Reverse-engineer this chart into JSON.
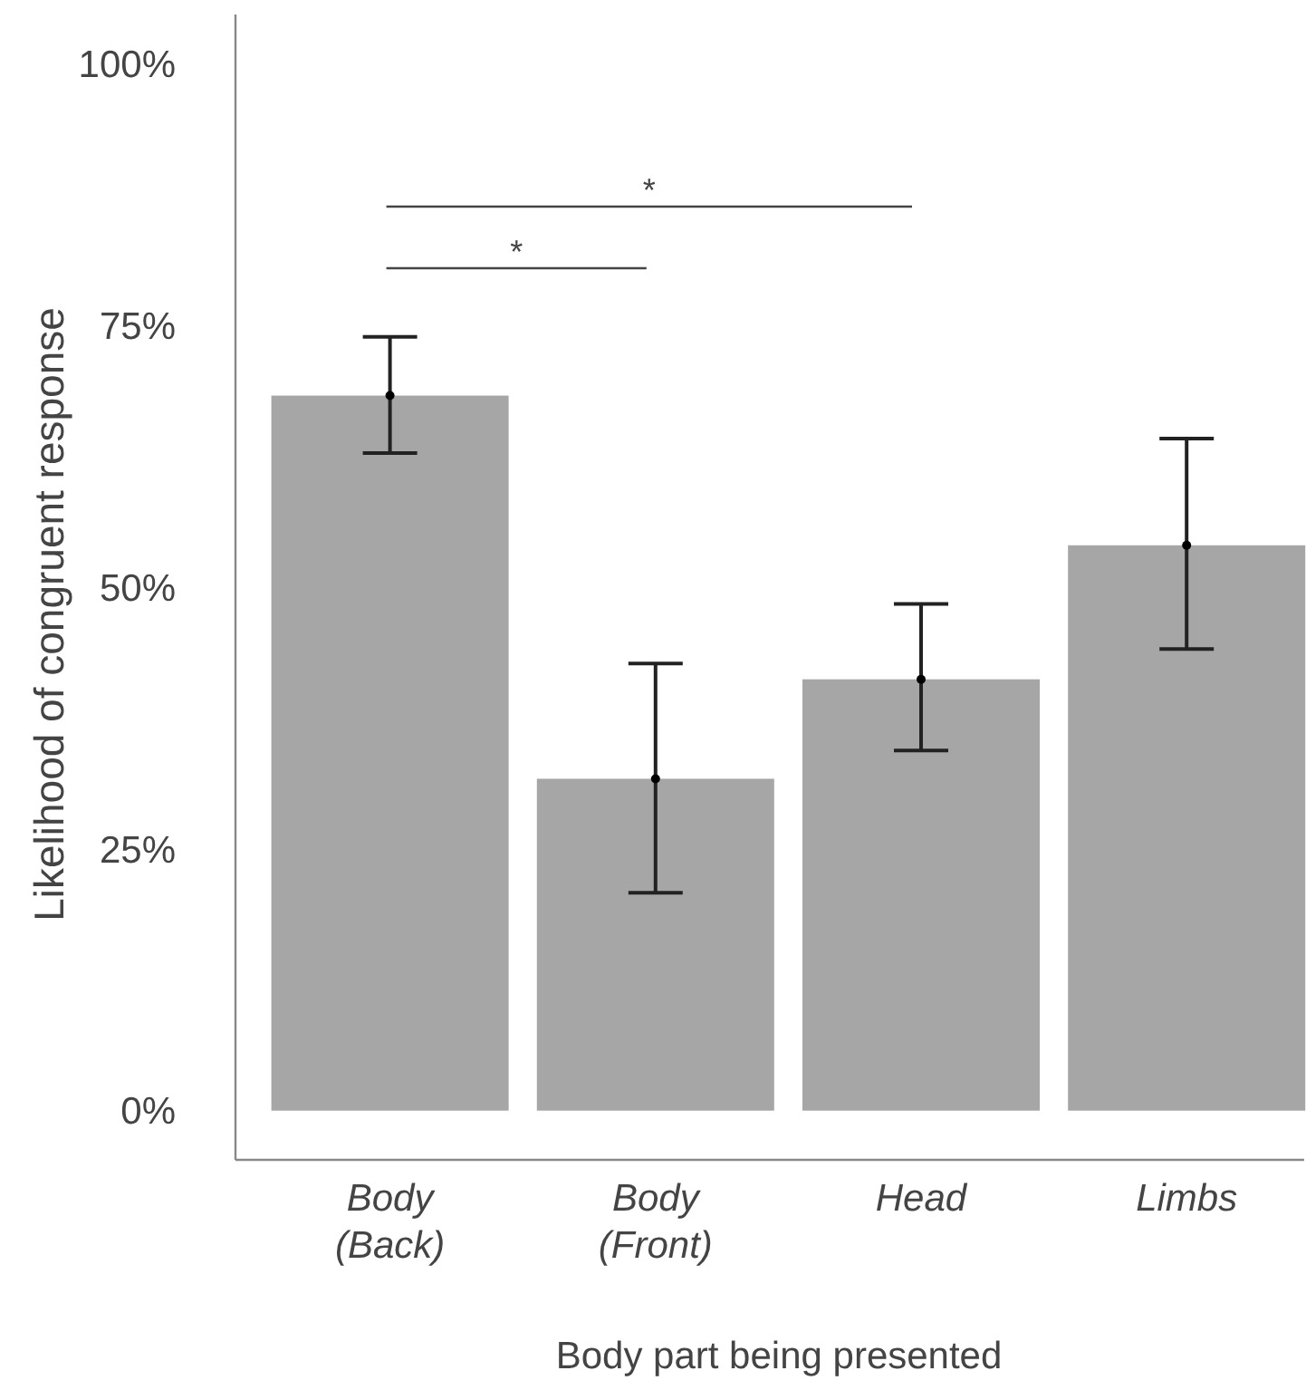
{
  "chart_data": {
    "type": "bar",
    "xlabel": "Body part being presented",
    "ylabel": "Likelihood of congruent response",
    "categories": [
      "Body\n(Back)",
      "Body\n(Front)",
      "Head",
      "Limbs"
    ],
    "series": [
      {
        "color": "#a6a6a6",
        "values": [
          68.3,
          31.7,
          41.2,
          54.0
        ],
        "errors": [
          [
            62.8,
            73.9
          ],
          [
            20.8,
            42.7
          ],
          [
            34.4,
            48.4
          ],
          [
            44.1,
            64.2
          ]
        ]
      },
      {
        "type": "scatter",
        "color": "#000000",
        "x": [
          "Body\n(Back)",
          "Body\n(Front)",
          "Head",
          "Limbs"
        ],
        "values": [
          68.3,
          31.7,
          41.2,
          54.0
        ]
      }
    ],
    "ylim": [
      -4.7,
      104.7
    ],
    "yticks": [
      {
        "value": 0,
        "label": "0%"
      },
      {
        "value": 25,
        "label": "25%"
      },
      {
        "value": 50,
        "label": "50%"
      },
      {
        "value": 75,
        "label": "75%"
      },
      {
        "value": 100,
        "label": "100%"
      }
    ],
    "annotations": [
      "*",
      "*"
    ],
    "marker": "circle",
    "grid": false
  }
}
